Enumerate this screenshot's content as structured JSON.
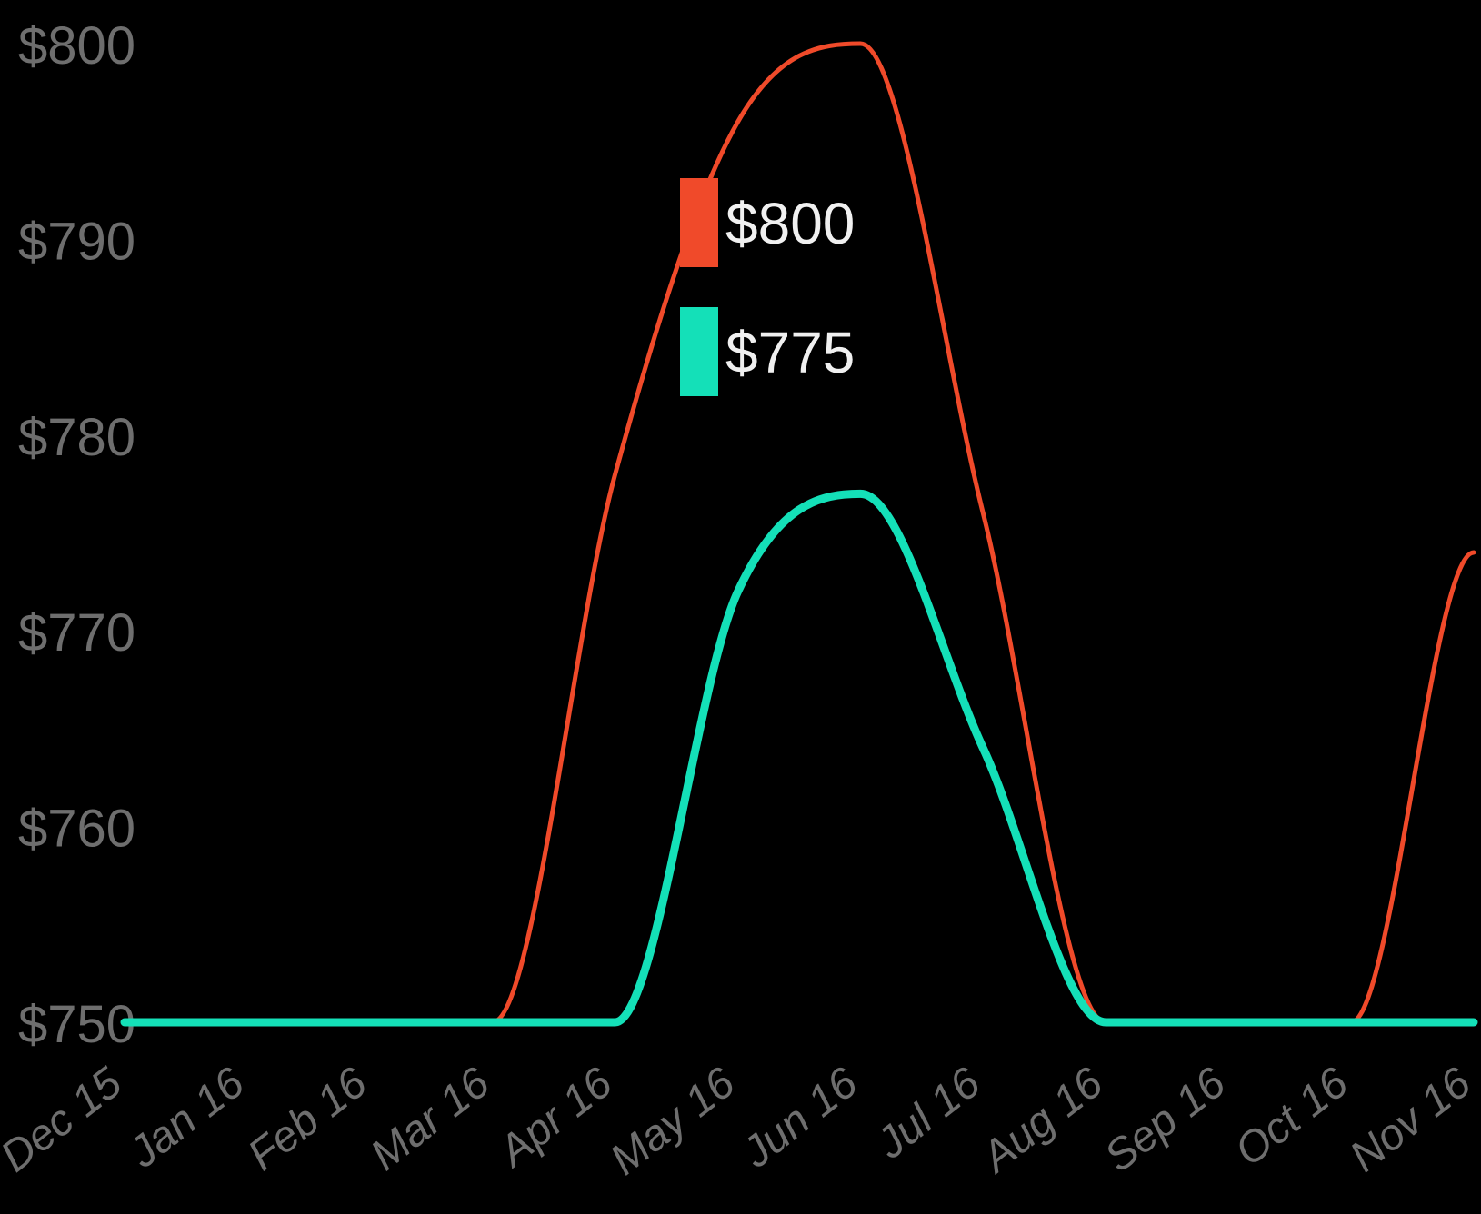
{
  "chart_data": {
    "type": "line",
    "title": "",
    "xlabel": "",
    "ylabel": "",
    "x": [
      "Dec 15",
      "Jan 16",
      "Feb 16",
      "Mar 16",
      "Apr 16",
      "May 16",
      "Jun 16",
      "Jul 16",
      "Aug 16",
      "Sep 16",
      "Oct 16",
      "Nov 16"
    ],
    "ylim": [
      750,
      800
    ],
    "y_ticks": [
      "$750",
      "$760",
      "$770",
      "$780",
      "$790",
      "$800"
    ],
    "y_tick_values": [
      750,
      760,
      770,
      780,
      790,
      800
    ],
    "grid": false,
    "series": [
      {
        "color": "#f04a2a",
        "values": [
          750,
          750,
          750,
          750,
          778,
          796,
          800,
          776,
          750,
          750,
          750,
          774
        ]
      },
      {
        "color": "#14e0b8",
        "values": [
          750,
          750,
          750,
          750,
          750,
          772,
          777,
          764,
          750,
          750,
          750,
          750
        ]
      }
    ],
    "legend": {
      "placement": "center",
      "entries": [
        {
          "label": "$800",
          "color": "#f04a2a"
        },
        {
          "label": "$775",
          "color": "#14e0b8"
        }
      ]
    }
  }
}
